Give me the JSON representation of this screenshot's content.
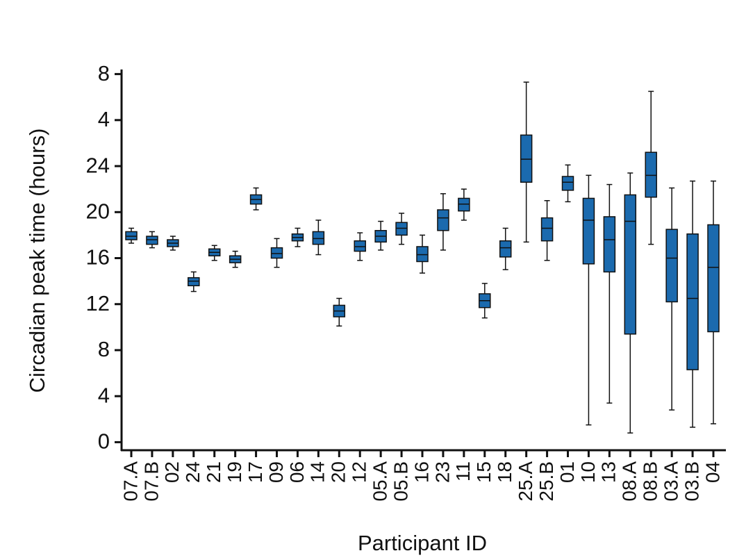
{
  "chart_data": {
    "type": "box",
    "ylabel": "Circadian peak time (hours)",
    "xlabel": "Participant ID",
    "color": "#1b6aae",
    "categories": [
      "07.A",
      "07.B",
      "02",
      "24",
      "21",
      "19",
      "17",
      "09",
      "06",
      "14",
      "20",
      "12",
      "05.A",
      "05.B",
      "16",
      "23",
      "11",
      "15",
      "18",
      "25.A",
      "25.B",
      "01",
      "10",
      "13",
      "08.A",
      "08.B",
      "03.A",
      "03.B",
      "04"
    ],
    "whislo": [
      17.3,
      16.9,
      16.7,
      13.1,
      15.8,
      15.2,
      20.2,
      15.2,
      17.0,
      16.3,
      10.1,
      15.8,
      16.7,
      17.2,
      14.7,
      16.7,
      19.3,
      10.8,
      15.0,
      17.4,
      15.8,
      20.9,
      1.5,
      3.4,
      0.8,
      17.2,
      2.8,
      1.3,
      1.6
    ],
    "q1": [
      17.6,
      17.2,
      17.0,
      13.6,
      16.2,
      15.6,
      20.7,
      16.0,
      17.5,
      17.2,
      10.9,
      16.6,
      17.4,
      18.0,
      15.7,
      18.4,
      20.1,
      11.7,
      16.1,
      22.6,
      17.5,
      21.9,
      15.5,
      14.8,
      9.4,
      21.3,
      12.2,
      6.3,
      9.6
    ],
    "med": [
      17.9,
      17.6,
      17.3,
      14.0,
      16.5,
      15.9,
      21.1,
      16.4,
      17.8,
      17.7,
      11.4,
      17.0,
      17.9,
      18.6,
      16.3,
      19.5,
      20.7,
      12.3,
      16.9,
      24.6,
      18.6,
      22.6,
      19.3,
      17.6,
      19.2,
      23.2,
      16.0,
      12.5,
      15.2
    ],
    "q3": [
      18.3,
      17.9,
      17.6,
      14.3,
      16.8,
      16.2,
      21.5,
      16.9,
      18.1,
      18.3,
      11.9,
      17.5,
      18.4,
      19.1,
      17.0,
      20.2,
      21.2,
      12.9,
      17.5,
      26.7,
      19.5,
      23.1,
      21.2,
      19.6,
      21.5,
      25.2,
      18.5,
      18.1,
      18.9
    ],
    "whishi": [
      18.6,
      18.3,
      17.9,
      14.8,
      17.1,
      16.6,
      22.1,
      17.7,
      18.6,
      19.3,
      12.5,
      18.2,
      19.2,
      19.9,
      18.0,
      21.6,
      22.0,
      13.8,
      18.6,
      31.3,
      21.0,
      24.1,
      23.2,
      22.4,
      23.4,
      30.5,
      22.1,
      22.7,
      22.7
    ],
    "ylim": [
      -0.7,
      32.4
    ],
    "yticks": [
      0,
      4,
      8,
      12,
      16,
      20,
      24,
      {
        "value": 28,
        "label": "4"
      },
      {
        "value": 32,
        "label": "8"
      }
    ]
  }
}
